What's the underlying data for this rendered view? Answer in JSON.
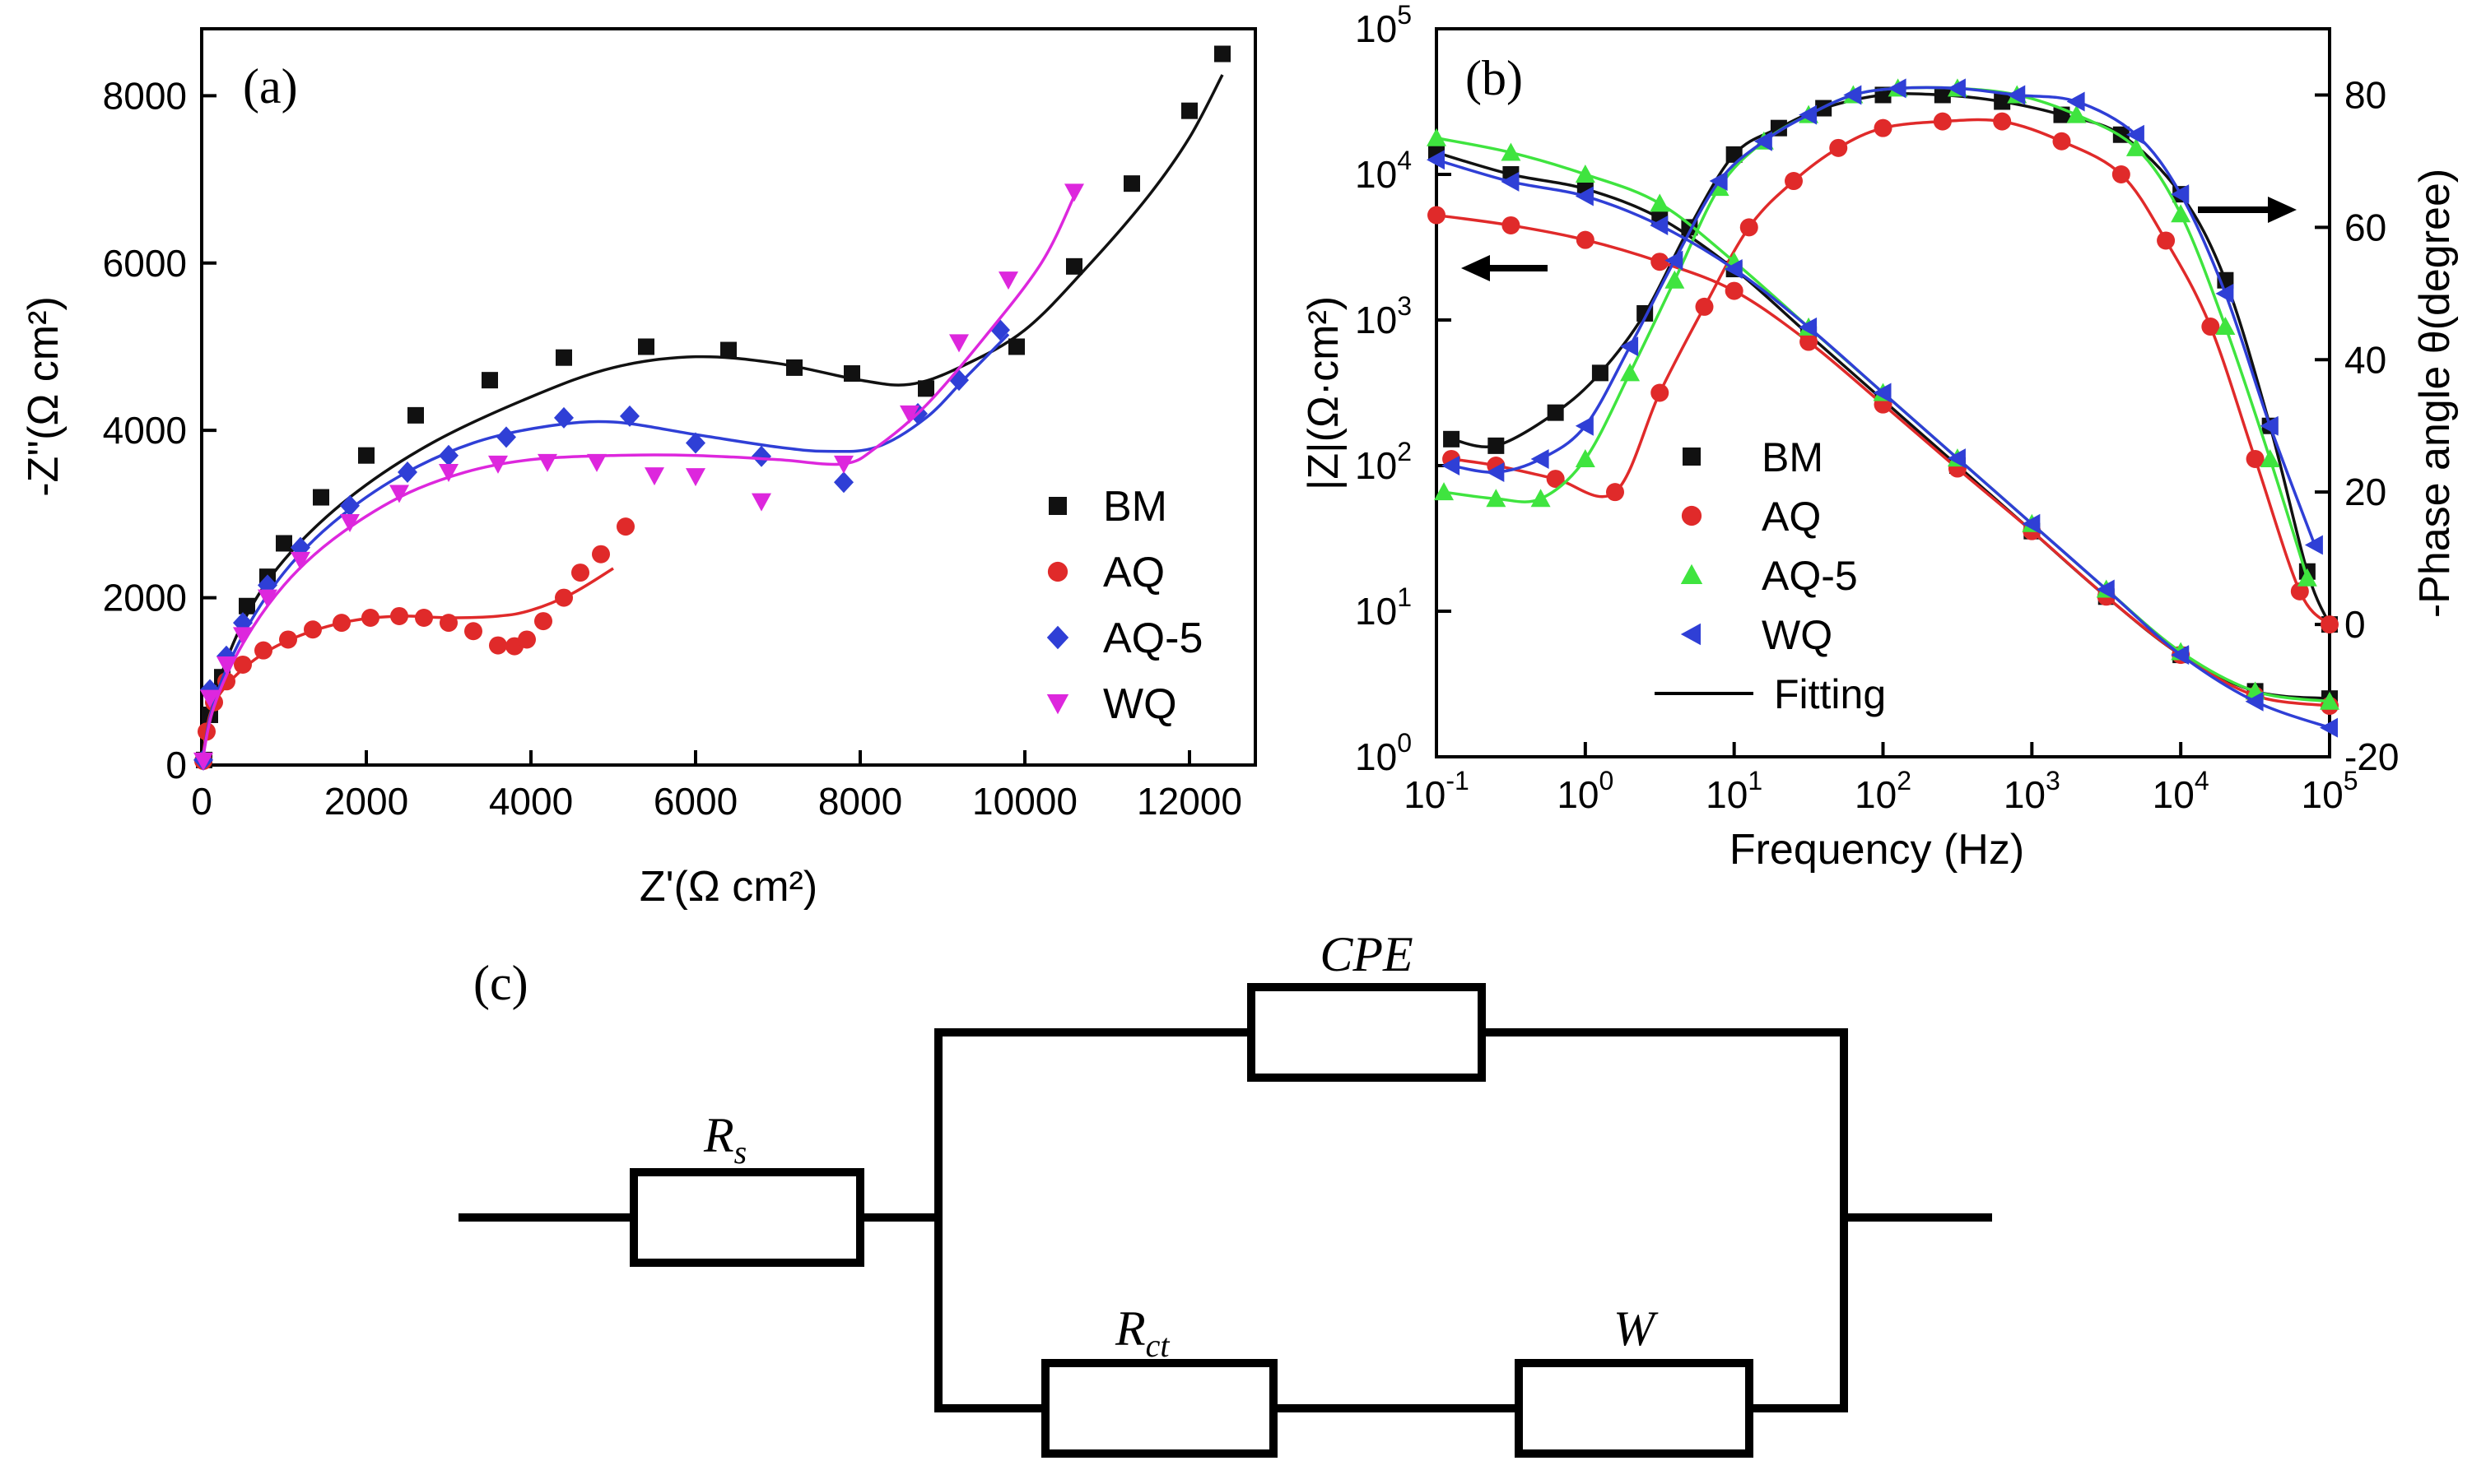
{
  "colors": {
    "BM": "#111111",
    "AQ": "#e02a2a",
    "AQ-5": "#2f3fd6",
    "WQ": "#dd27dd",
    "AQ-5_b": "#3fe43f",
    "WQ_b": "#2f3fd6",
    "axis": "#000000"
  },
  "chart_data": [
    {
      "panel": "(a)",
      "type": "scatter",
      "xlabel": "Z'(Ω cm²)",
      "ylabel": "-Z''(Ω cm²)",
      "xlim": [
        0,
        12800
      ],
      "ylim": [
        0,
        8800
      ],
      "xticks": [
        "0",
        "2000",
        "4000",
        "6000",
        "8000",
        "10000",
        "12000"
      ],
      "yticks": [
        "0",
        "2000",
        "4000",
        "6000",
        "8000"
      ],
      "legend": {
        "position": "right",
        "labels": [
          "BM",
          "AQ",
          "AQ-5",
          "WQ"
        ]
      },
      "series": [
        {
          "name": "BM",
          "marker": "square",
          "points": [
            [
              30,
              60
            ],
            [
              100,
              600
            ],
            [
              250,
              1050
            ],
            [
              550,
              1900
            ],
            [
              800,
              2250
            ],
            [
              1000,
              2650
            ],
            [
              1450,
              3200
            ],
            [
              2000,
              3700
            ],
            [
              2600,
              4180
            ],
            [
              3500,
              4600
            ],
            [
              4400,
              4870
            ],
            [
              5400,
              5000
            ],
            [
              6400,
              4960
            ],
            [
              7200,
              4750
            ],
            [
              7900,
              4680
            ],
            [
              8800,
              4500
            ],
            [
              9900,
              5000
            ],
            [
              10600,
              5960
            ],
            [
              11300,
              6950
            ],
            [
              12000,
              7820
            ],
            [
              12400,
              8500
            ]
          ],
          "fit": [
            [
              0,
              0
            ],
            [
              150,
              800
            ],
            [
              500,
              1700
            ],
            [
              1000,
              2450
            ],
            [
              1800,
              3200
            ],
            [
              2800,
              3850
            ],
            [
              4000,
              4400
            ],
            [
              5000,
              4750
            ],
            [
              6000,
              4880
            ],
            [
              7000,
              4800
            ],
            [
              8000,
              4600
            ],
            [
              8600,
              4550
            ],
            [
              9200,
              4750
            ],
            [
              10000,
              5200
            ],
            [
              10800,
              6000
            ],
            [
              11500,
              6800
            ],
            [
              12000,
              7500
            ],
            [
              12400,
              8250
            ]
          ]
        },
        {
          "name": "AQ",
          "marker": "circle",
          "points": [
            [
              20,
              50
            ],
            [
              60,
              400
            ],
            [
              150,
              750
            ],
            [
              300,
              1000
            ],
            [
              500,
              1200
            ],
            [
              750,
              1370
            ],
            [
              1050,
              1500
            ],
            [
              1350,
              1620
            ],
            [
              1700,
              1700
            ],
            [
              2050,
              1760
            ],
            [
              2400,
              1780
            ],
            [
              2700,
              1760
            ],
            [
              3000,
              1700
            ],
            [
              3300,
              1600
            ],
            [
              3600,
              1430
            ],
            [
              3800,
              1420
            ],
            [
              3950,
              1500
            ],
            [
              4150,
              1720
            ],
            [
              4400,
              2000
            ],
            [
              4600,
              2300
            ],
            [
              4850,
              2520
            ],
            [
              5150,
              2850
            ]
          ],
          "fit": [
            [
              0,
              0
            ],
            [
              100,
              600
            ],
            [
              300,
              950
            ],
            [
              700,
              1300
            ],
            [
              1200,
              1550
            ],
            [
              1800,
              1720
            ],
            [
              2400,
              1780
            ],
            [
              3000,
              1760
            ],
            [
              3600,
              1780
            ],
            [
              4000,
              1850
            ],
            [
              4500,
              2050
            ],
            [
              5000,
              2350
            ]
          ]
        },
        {
          "name": "AQ-5",
          "marker": "diamond",
          "points": [
            [
              20,
              60
            ],
            [
              100,
              900
            ],
            [
              300,
              1300
            ],
            [
              500,
              1700
            ],
            [
              800,
              2150
            ],
            [
              1200,
              2600
            ],
            [
              1800,
              3100
            ],
            [
              2500,
              3500
            ],
            [
              3000,
              3700
            ],
            [
              3700,
              3920
            ],
            [
              4400,
              4150
            ],
            [
              5200,
              4170
            ],
            [
              6000,
              3850
            ],
            [
              6800,
              3690
            ],
            [
              7800,
              3380
            ],
            [
              8700,
              4200
            ],
            [
              9200,
              4600
            ],
            [
              9700,
              5200
            ]
          ],
          "fit": [
            [
              0,
              0
            ],
            [
              150,
              750
            ],
            [
              500,
              1550
            ],
            [
              1000,
              2300
            ],
            [
              1600,
              2900
            ],
            [
              2400,
              3450
            ],
            [
              3300,
              3850
            ],
            [
              4200,
              4050
            ],
            [
              5000,
              4100
            ],
            [
              6000,
              3950
            ],
            [
              7000,
              3800
            ],
            [
              7600,
              3750
            ],
            [
              8200,
              3800
            ],
            [
              8800,
              4150
            ],
            [
              9300,
              4650
            ],
            [
              9800,
              5150
            ]
          ]
        },
        {
          "name": "WQ",
          "marker": "triangle-down",
          "points": [
            [
              20,
              50
            ],
            [
              100,
              800
            ],
            [
              300,
              1200
            ],
            [
              500,
              1550
            ],
            [
              800,
              2000
            ],
            [
              1200,
              2450
            ],
            [
              1800,
              2900
            ],
            [
              2400,
              3250
            ],
            [
              3000,
              3500
            ],
            [
              3600,
              3600
            ],
            [
              4200,
              3620
            ],
            [
              4800,
              3620
            ],
            [
              5500,
              3460
            ],
            [
              6000,
              3450
            ],
            [
              6800,
              3150
            ],
            [
              7800,
              3600
            ],
            [
              8600,
              4200
            ],
            [
              9200,
              5050
            ],
            [
              9800,
              5800
            ],
            [
              10600,
              6850
            ]
          ],
          "fit": [
            [
              0,
              0
            ],
            [
              150,
              700
            ],
            [
              500,
              1450
            ],
            [
              1000,
              2150
            ],
            [
              1600,
              2700
            ],
            [
              2400,
              3200
            ],
            [
              3200,
              3500
            ],
            [
              4000,
              3650
            ],
            [
              5000,
              3700
            ],
            [
              6000,
              3700
            ],
            [
              7000,
              3650
            ],
            [
              7800,
              3600
            ],
            [
              8200,
              3800
            ],
            [
              8800,
              4300
            ],
            [
              9500,
              5100
            ],
            [
              10200,
              6000
            ],
            [
              10600,
              6800
            ]
          ]
        }
      ]
    },
    {
      "panel": "(b)",
      "type": "line",
      "xlabel": "Frequency (Hz)",
      "ylabel": "|Z|(Ω·cm²)",
      "ylabel_right": "-Phase angle θ(degree)",
      "xlim": [
        -1,
        5
      ],
      "ylim": [
        0,
        5
      ],
      "ylim_right": [
        -20,
        90
      ],
      "x_scale": "log10",
      "y_scale": "log10",
      "xticks": [
        {
          "base": "10",
          "exp": "-1"
        },
        {
          "base": "10",
          "exp": "0"
        },
        {
          "base": "10",
          "exp": "1"
        },
        {
          "base": "10",
          "exp": "2"
        },
        {
          "base": "10",
          "exp": "3"
        },
        {
          "base": "10",
          "exp": "4"
        },
        {
          "base": "10",
          "exp": "5"
        }
      ],
      "yticks": [
        {
          "base": "10",
          "exp": "0"
        },
        {
          "base": "10",
          "exp": "1"
        },
        {
          "base": "10",
          "exp": "2"
        },
        {
          "base": "10",
          "exp": "3"
        },
        {
          "base": "10",
          "exp": "4"
        },
        {
          "base": "10",
          "exp": "5"
        }
      ],
      "yticks_right": [
        "-20",
        "0",
        "20",
        "40",
        "60",
        "80"
      ],
      "legend": {
        "position": "center-left",
        "labels": [
          "BM",
          "AQ",
          "AQ-5",
          "WQ",
          "Fitting"
        ]
      },
      "series": [
        {
          "name": "BM",
          "marker": "square",
          "impedance": {
            "logf": [
              -1,
              -0.5,
              0,
              0.5,
              1,
              1.5,
              2,
              2.5,
              3,
              3.5,
              4,
              4.5,
              5
            ],
            "logZ": [
              4.15,
              4.0,
              3.9,
              3.7,
              3.35,
              2.9,
              2.45,
              2.0,
              1.55,
              1.1,
              0.7,
              0.45,
              0.4
            ]
          },
          "phase": {
            "logf": [
              -0.9,
              -0.6,
              -0.2,
              0.1,
              0.4,
              0.7,
              1.0,
              1.3,
              1.6,
              2.0,
              2.4,
              2.8,
              3.2,
              3.6,
              4.0,
              4.3,
              4.6,
              4.85,
              5.0
            ],
            "deg": [
              28,
              27,
              32,
              38,
              47,
              60,
              71,
              75,
              78,
              80,
              80,
              79,
              77,
              74,
              65,
              52,
              30,
              8,
              0
            ]
          }
        },
        {
          "name": "AQ",
          "marker": "circle",
          "impedance": {
            "logf": [
              -1,
              -0.5,
              0,
              0.5,
              1,
              1.5,
              2,
              2.5,
              3,
              3.5,
              4,
              4.5,
              5
            ],
            "logZ": [
              3.72,
              3.65,
              3.55,
              3.4,
              3.2,
              2.85,
              2.42,
              1.98,
              1.55,
              1.1,
              0.7,
              0.42,
              0.35
            ]
          },
          "phase": {
            "logf": [
              -0.9,
              -0.6,
              -0.2,
              0.2,
              0.5,
              0.8,
              1.1,
              1.4,
              1.7,
              2.0,
              2.4,
              2.8,
              3.2,
              3.6,
              3.9,
              4.2,
              4.5,
              4.8,
              5.0
            ],
            "deg": [
              25,
              24,
              22,
              20,
              35,
              48,
              60,
              67,
              72,
              75,
              76,
              76,
              73,
              68,
              58,
              45,
              25,
              5,
              0
            ]
          }
        },
        {
          "name": "AQ-5",
          "marker": "triangle-up",
          "impedance": {
            "logf": [
              -1,
              -0.5,
              0,
              0.5,
              1,
              1.5,
              2,
              2.5,
              3,
              3.5,
              4,
              4.5,
              5
            ],
            "logZ": [
              4.25,
              4.15,
              4.0,
              3.8,
              3.4,
              2.95,
              2.5,
              2.05,
              1.6,
              1.15,
              0.72,
              0.45,
              0.38
            ]
          },
          "phase": {
            "logf": [
              -0.95,
              -0.6,
              -0.3,
              0.0,
              0.3,
              0.6,
              0.9,
              1.2,
              1.5,
              1.8,
              2.1,
              2.5,
              2.9,
              3.3,
              3.7,
              4.0,
              4.3,
              4.6,
              4.85
            ],
            "deg": [
              20,
              19,
              19,
              25,
              38,
              52,
              66,
              73,
              77,
              80,
              81,
              81,
              80,
              77,
              72,
              62,
              45,
              25,
              7
            ]
          }
        },
        {
          "name": "WQ",
          "marker": "triangle-left",
          "impedance": {
            "logf": [
              -1,
              -0.5,
              0,
              0.5,
              1,
              1.5,
              2,
              2.5,
              3,
              3.5,
              4,
              4.5,
              5
            ],
            "logZ": [
              4.1,
              3.95,
              3.85,
              3.65,
              3.35,
              2.95,
              2.5,
              2.05,
              1.6,
              1.15,
              0.7,
              0.38,
              0.2
            ]
          },
          "phase": {
            "logf": [
              -0.9,
              -0.6,
              -0.3,
              0.0,
              0.3,
              0.6,
              0.9,
              1.2,
              1.5,
              1.8,
              2.1,
              2.5,
              2.9,
              3.3,
              3.7,
              4.0,
              4.3,
              4.6,
              4.9
            ],
            "deg": [
              24,
              23,
              25,
              30,
              42,
              55,
              67,
              73,
              77,
              80,
              81,
              81,
              80,
              79,
              74,
              65,
              50,
              30,
              12
            ]
          }
        }
      ]
    }
  ],
  "panel_a": {
    "label": "(a)"
  },
  "panel_b": {
    "label": "(b)",
    "fitting_label": "Fitting"
  },
  "panel_c": {
    "label": "(c)",
    "type": "equivalent-circuit",
    "elements": [
      {
        "main": "R",
        "sub": "s"
      },
      {
        "main": "CPE",
        "sub": ""
      },
      {
        "main": "R",
        "sub": "ct"
      },
      {
        "main": "W",
        "sub": ""
      }
    ]
  }
}
